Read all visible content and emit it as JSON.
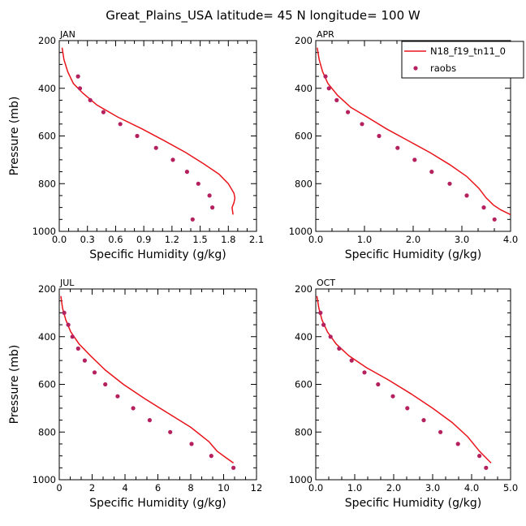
{
  "figure": {
    "title": "Great_Plains_USA   latitude= 45 N longitude= 100 W"
  },
  "legend": {
    "model_label": "N18_f19_tn11_0",
    "obs_label": "raobs",
    "model_color": "#e8141b",
    "obs_color": "#b5215f"
  },
  "chart_data": [
    {
      "type": "line",
      "panel": "JAN",
      "xlabel": "Specific Humidity (g/kg)",
      "ylabel": "Pressure (mb)",
      "xlim": [
        0,
        2.1
      ],
      "ylim": [
        1000,
        200
      ],
      "xticks": [
        "0.0",
        "0.3",
        "0.6",
        "0.9",
        "1.2",
        "1.5",
        "1.8",
        "2.1"
      ],
      "yticks": [
        "200",
        "400",
        "600",
        "800",
        "1000"
      ],
      "series": [
        {
          "name": "N18_f19_tn11_0",
          "kind": "line",
          "x": [
            0.03,
            0.05,
            0.09,
            0.15,
            0.25,
            0.4,
            0.62,
            0.88,
            1.12,
            1.35,
            1.55,
            1.7,
            1.8,
            1.86,
            1.87,
            1.86,
            1.84,
            1.85
          ],
          "y": [
            230,
            280,
            330,
            380,
            420,
            470,
            520,
            570,
            620,
            670,
            720,
            760,
            800,
            840,
            860,
            880,
            900,
            930
          ]
        },
        {
          "name": "raobs",
          "kind": "points",
          "x": [
            0.2,
            0.22,
            0.33,
            0.47,
            0.65,
            0.83,
            1.03,
            1.21,
            1.36,
            1.48,
            1.6,
            1.63,
            1.42
          ],
          "y": [
            350,
            400,
            450,
            500,
            550,
            600,
            650,
            700,
            750,
            800,
            850,
            900,
            950
          ]
        }
      ]
    },
    {
      "type": "line",
      "panel": "APR",
      "xlabel": "Specific Humidity (g/kg)",
      "ylabel": "",
      "xlim": [
        0,
        4.0
      ],
      "ylim": [
        1000,
        200
      ],
      "xticks": [
        "0.0",
        "1.0",
        "2.0",
        "3.0",
        "4.0"
      ],
      "yticks": [
        "200",
        "400",
        "600",
        "800",
        "1000"
      ],
      "series": [
        {
          "name": "N18_f19_tn11_0",
          "kind": "line",
          "x": [
            0.03,
            0.07,
            0.14,
            0.25,
            0.45,
            0.72,
            1.05,
            1.45,
            1.9,
            2.35,
            2.75,
            3.1,
            3.35,
            3.5,
            3.65,
            3.8,
            4.0
          ],
          "y": [
            230,
            280,
            330,
            380,
            430,
            480,
            520,
            570,
            620,
            670,
            720,
            770,
            820,
            860,
            890,
            910,
            930
          ]
        },
        {
          "name": "raobs",
          "kind": "points",
          "x": [
            0.2,
            0.27,
            0.43,
            0.66,
            0.95,
            1.3,
            1.68,
            2.03,
            2.38,
            2.75,
            3.1,
            3.45,
            3.67
          ],
          "y": [
            350,
            400,
            450,
            500,
            550,
            600,
            650,
            700,
            750,
            800,
            850,
            900,
            950
          ]
        }
      ]
    },
    {
      "type": "line",
      "panel": "JUL",
      "xlabel": "Specific Humidity (g/kg)",
      "ylabel": "Pressure (mb)",
      "xlim": [
        0,
        12
      ],
      "ylim": [
        1000,
        200
      ],
      "xticks": [
        "0",
        "2",
        "4",
        "6",
        "8",
        "10",
        "12"
      ],
      "yticks": [
        "200",
        "400",
        "600",
        "800",
        "1000"
      ],
      "series": [
        {
          "name": "N18_f19_tn11_0",
          "kind": "line",
          "x": [
            0.1,
            0.2,
            0.4,
            0.7,
            1.2,
            1.9,
            2.8,
            3.9,
            5.2,
            6.6,
            8.0,
            9.1,
            9.6,
            10.2,
            10.6
          ],
          "y": [
            230,
            280,
            330,
            380,
            430,
            480,
            540,
            600,
            660,
            720,
            780,
            840,
            880,
            910,
            930
          ]
        },
        {
          "name": "raobs",
          "kind": "points",
          "x": [
            0.3,
            0.55,
            0.8,
            1.15,
            1.55,
            2.15,
            2.8,
            3.55,
            4.5,
            5.5,
            6.75,
            8.05,
            9.25,
            10.6
          ],
          "y": [
            300,
            350,
            400,
            450,
            500,
            550,
            600,
            650,
            700,
            750,
            800,
            850,
            900,
            950
          ]
        }
      ]
    },
    {
      "type": "line",
      "panel": "OCT",
      "xlabel": "Specific Humidity (g/kg)",
      "ylabel": "",
      "xlim": [
        0,
        5.0
      ],
      "ylim": [
        1000,
        200
      ],
      "xticks": [
        "0.0",
        "1.0",
        "2.0",
        "3.0",
        "4.0",
        "5.0"
      ],
      "yticks": [
        "200",
        "400",
        "600",
        "800",
        "1000"
      ],
      "series": [
        {
          "name": "N18_f19_tn11_0",
          "kind": "line",
          "x": [
            0.03,
            0.08,
            0.16,
            0.3,
            0.52,
            0.85,
            1.3,
            1.85,
            2.45,
            3.0,
            3.5,
            3.9,
            4.2,
            4.5
          ],
          "y": [
            230,
            280,
            330,
            380,
            430,
            480,
            530,
            580,
            640,
            700,
            760,
            820,
            880,
            930
          ]
        },
        {
          "name": "raobs",
          "kind": "points",
          "x": [
            0.12,
            0.2,
            0.38,
            0.6,
            0.92,
            1.25,
            1.6,
            1.98,
            2.35,
            2.77,
            3.2,
            3.65,
            4.2,
            4.37
          ],
          "y": [
            300,
            350,
            400,
            450,
            500,
            550,
            600,
            650,
            700,
            750,
            800,
            850,
            900,
            950
          ]
        }
      ]
    }
  ]
}
